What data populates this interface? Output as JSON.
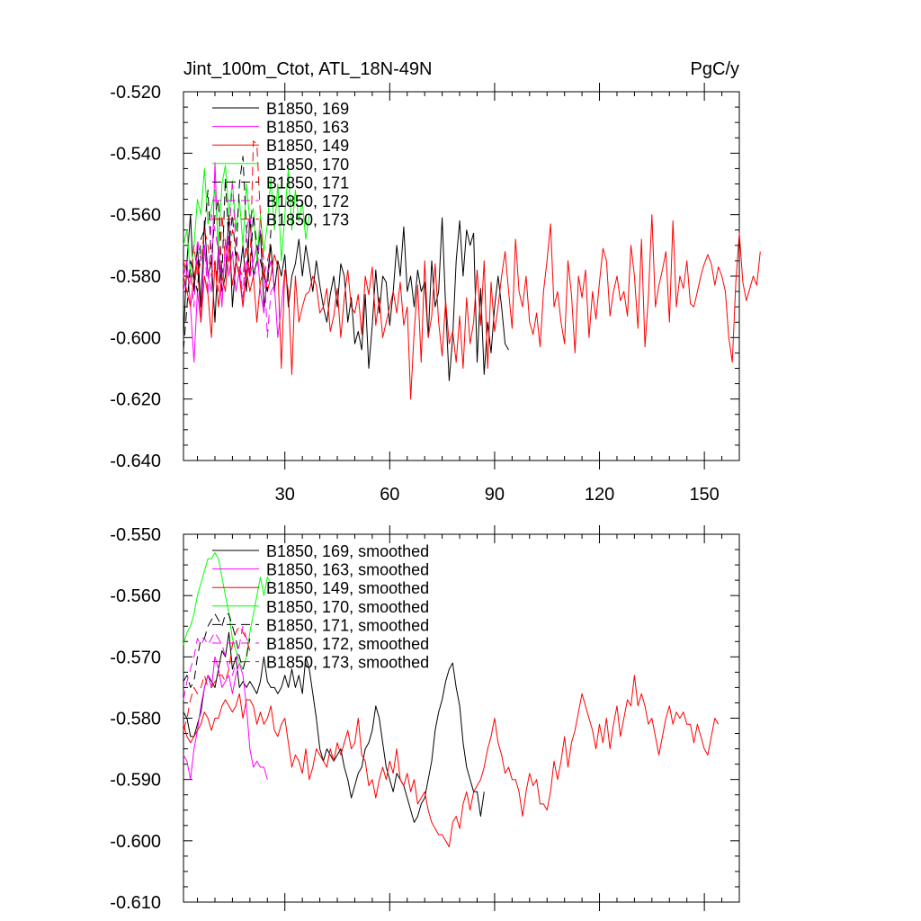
{
  "chart_data": [
    {
      "type": "line",
      "title": "Jint_100m_Ctot, ATL_18N-49N",
      "units_label": "PgC/y",
      "xlabel": "",
      "ylabel": "",
      "xlim": [
        1,
        160
      ],
      "ylim": [
        -0.64,
        -0.52
      ],
      "x_ticks": [
        30,
        60,
        90,
        120,
        150
      ],
      "x_tick_labels": [
        "30",
        "60",
        "90",
        "120",
        "150"
      ],
      "y_ticks": [
        -0.52,
        -0.54,
        -0.56,
        -0.58,
        -0.6,
        -0.62,
        -0.64
      ],
      "y_tick_labels": [
        "-0.520",
        "-0.540",
        "-0.560",
        "-0.580",
        "-0.600",
        "-0.620",
        "-0.640"
      ],
      "legend_position": "top-left",
      "series": [
        {
          "name": "B1850, 169",
          "color": "#000000",
          "dash": "solid",
          "x_start": 1,
          "values": [
            -0.6,
            -0.575,
            -0.56,
            -0.585,
            -0.57,
            -0.59,
            -0.562,
            -0.58,
            -0.575,
            -0.595,
            -0.57,
            -0.585,
            -0.58,
            -0.56,
            -0.59,
            -0.575,
            -0.58,
            -0.57,
            -0.585,
            -0.56,
            -0.58,
            -0.575,
            -0.565,
            -0.59,
            -0.58,
            -0.57,
            -0.585,
            -0.575,
            -0.58,
            -0.573,
            -0.59,
            -0.58,
            -0.576,
            -0.568,
            -0.58,
            -0.57,
            -0.577,
            -0.585,
            -0.575,
            -0.583,
            -0.59,
            -0.595,
            -0.586,
            -0.58,
            -0.59,
            -0.576,
            -0.58,
            -0.595,
            -0.587,
            -0.602,
            -0.598,
            -0.604,
            -0.586,
            -0.61,
            -0.596,
            -0.578,
            -0.592,
            -0.58,
            -0.582,
            -0.596,
            -0.585,
            -0.57,
            -0.58,
            -0.564,
            -0.585,
            -0.58,
            -0.59,
            -0.578,
            -0.585,
            -0.582,
            -0.6,
            -0.575,
            -0.59,
            -0.585,
            -0.561,
            -0.59,
            -0.614,
            -0.6,
            -0.575,
            -0.562,
            -0.58,
            -0.565,
            -0.57,
            -0.566,
            -0.608,
            -0.584,
            -0.612,
            -0.595,
            -0.605,
            -0.59,
            -0.58,
            -0.59,
            -0.602,
            -0.604
          ]
        },
        {
          "name": "B1850, 163",
          "color": "#ff00ff",
          "dash": "solid",
          "x_start": 1,
          "values": [
            -0.58,
            -0.575,
            -0.59,
            -0.608,
            -0.585,
            -0.595,
            -0.57,
            -0.58,
            -0.585,
            -0.543,
            -0.575,
            -0.59,
            -0.568,
            -0.58,
            -0.572,
            -0.585,
            -0.578,
            -0.59,
            -0.575,
            -0.58,
            -0.575,
            -0.57,
            -0.585,
            -0.592,
            -0.58,
            -0.575,
            -0.583,
            -0.6,
            -0.59,
            -0.578
          ]
        },
        {
          "name": "B1850, 149",
          "color": "#ff0000",
          "dash": "solid",
          "x_start": 1,
          "values": [
            -0.58,
            -0.585,
            -0.59,
            -0.58,
            -0.575,
            -0.595,
            -0.58,
            -0.586,
            -0.6,
            -0.575,
            -0.59,
            -0.58,
            -0.585,
            -0.57,
            -0.583,
            -0.575,
            -0.58,
            -0.59,
            -0.578,
            -0.585,
            -0.58,
            -0.595,
            -0.582,
            -0.578,
            -0.585,
            -0.58,
            -0.573,
            -0.577,
            -0.61,
            -0.578,
            -0.585,
            -0.612,
            -0.58,
            -0.595,
            -0.59,
            -0.586,
            -0.585,
            -0.58,
            -0.583,
            -0.592,
            -0.59,
            -0.584,
            -0.598,
            -0.593,
            -0.584,
            -0.6,
            -0.587,
            -0.578,
            -0.59,
            -0.592,
            -0.586,
            -0.599,
            -0.58,
            -0.586,
            -0.577,
            -0.596,
            -0.587,
            -0.6,
            -0.595,
            -0.59,
            -0.585,
            -0.592,
            -0.582,
            -0.596,
            -0.59,
            -0.62,
            -0.598,
            -0.583,
            -0.608,
            -0.575,
            -0.6,
            -0.593,
            -0.576,
            -0.595,
            -0.606,
            -0.588,
            -0.602,
            -0.598,
            -0.608,
            -0.593,
            -0.61,
            -0.587,
            -0.602,
            -0.595,
            -0.578,
            -0.596,
            -0.575,
            -0.61,
            -0.582,
            -0.598,
            -0.59,
            -0.58,
            -0.572,
            -0.585,
            -0.597,
            -0.568,
            -0.585,
            -0.59,
            -0.58,
            -0.595,
            -0.599,
            -0.592,
            -0.603,
            -0.585,
            -0.575,
            -0.563,
            -0.59,
            -0.585,
            -0.595,
            -0.602,
            -0.575,
            -0.586,
            -0.605,
            -0.58,
            -0.587,
            -0.578,
            -0.6,
            -0.585,
            -0.594,
            -0.582,
            -0.571,
            -0.575,
            -0.593,
            -0.585,
            -0.58,
            -0.588,
            -0.585,
            -0.593,
            -0.57,
            -0.58,
            -0.597,
            -0.568,
            -0.603,
            -0.587,
            -0.56,
            -0.59,
            -0.583,
            -0.578,
            -0.572,
            -0.595,
            -0.562,
            -0.59,
            -0.58,
            -0.584,
            -0.575,
            -0.589,
            -0.59,
            -0.585,
            -0.58,
            -0.576,
            -0.573,
            -0.576,
            -0.583,
            -0.577,
            -0.58,
            -0.585,
            -0.6,
            -0.608,
            -0.582,
            -0.566,
            -0.582,
            -0.588,
            -0.584,
            -0.58,
            -0.583,
            -0.572
          ]
        },
        {
          "name": "B1850, 170",
          "color": "#00ff00",
          "dash": "solid",
          "x_start": 1,
          "values": [
            -0.57,
            -0.565,
            -0.58,
            -0.57,
            -0.555,
            -0.56,
            -0.545,
            -0.563,
            -0.558,
            -0.552,
            -0.57,
            -0.55,
            -0.544,
            -0.56,
            -0.549,
            -0.565,
            -0.555,
            -0.57,
            -0.55,
            -0.562,
            -0.558,
            -0.575,
            -0.56,
            -0.572,
            -0.563,
            -0.548,
            -0.565,
            -0.55,
            -0.575,
            -0.56,
            -0.545,
            -0.565,
            -0.552,
            -0.562,
            -0.556,
            -0.568,
            -0.56
          ]
        },
        {
          "name": "B1850, 171",
          "color": "#000000",
          "dash": "long",
          "x_start": 1,
          "values": [
            -0.604,
            -0.59,
            -0.575,
            -0.58,
            -0.585,
            -0.568,
            -0.565,
            -0.552,
            -0.575,
            -0.56,
            -0.555,
            -0.58,
            -0.548,
            -0.57,
            -0.56,
            -0.575,
            -0.55,
            -0.541,
            -0.565,
            -0.58,
            -0.56,
            -0.57,
            -0.575,
            -0.58,
            -0.585,
            -0.565
          ]
        },
        {
          "name": "B1850, 172",
          "color": "#ff00ff",
          "dash": "long",
          "x_start": 1,
          "values": [
            -0.585,
            -0.578,
            -0.58,
            -0.59,
            -0.568,
            -0.575,
            -0.57,
            -0.586,
            -0.56,
            -0.565,
            -0.572,
            -0.58,
            -0.575,
            -0.567,
            -0.55,
            -0.57,
            -0.575,
            -0.587,
            -0.565,
            -0.56,
            -0.58,
            -0.578,
            -0.565,
            -0.575,
            -0.6,
            -0.585,
            -0.583
          ]
        },
        {
          "name": "B1850, 173",
          "color": "#ff0000",
          "dash": "long",
          "x_start": 1,
          "values": [
            -0.575,
            -0.58,
            -0.583,
            -0.57,
            -0.58,
            -0.575,
            -0.565,
            -0.57,
            -0.58,
            -0.575,
            -0.585,
            -0.56,
            -0.575,
            -0.575,
            -0.565,
            -0.57,
            -0.578,
            -0.58,
            -0.57,
            -0.58,
            -0.536,
            -0.537,
            -0.56,
            -0.58,
            -0.575,
            -0.57
          ]
        }
      ]
    },
    {
      "type": "line",
      "title": "",
      "xlabel": "",
      "ylabel": "",
      "xlim": [
        1,
        160
      ],
      "ylim": [
        -0.61,
        -0.55
      ],
      "x_ticks": [
        30,
        60,
        90,
        120,
        150
      ],
      "x_tick_labels": [],
      "y_ticks": [
        -0.55,
        -0.56,
        -0.57,
        -0.58,
        -0.59,
        -0.6,
        -0.61
      ],
      "y_tick_labels": [
        "-0.550",
        "-0.560",
        "-0.570",
        "-0.580",
        "-0.590",
        "-0.600",
        "-0.610"
      ],
      "legend_position": "top-left",
      "series": [
        {
          "name": "B1850, 169, smoothed",
          "color": "#000000",
          "dash": "solid",
          "x_start": 1,
          "values": [
            -0.579,
            -0.58,
            -0.583,
            -0.583,
            -0.581,
            -0.579,
            -0.575,
            -0.573,
            -0.574,
            -0.575,
            -0.572,
            -0.569,
            -0.57,
            -0.566,
            -0.572,
            -0.57,
            -0.575,
            -0.574,
            -0.575,
            -0.574,
            -0.575,
            -0.576,
            -0.574,
            -0.57,
            -0.574,
            -0.575,
            -0.575,
            -0.576,
            -0.575,
            -0.573,
            -0.575,
            -0.572,
            -0.575,
            -0.573,
            -0.576,
            -0.57,
            -0.572,
            -0.576,
            -0.58,
            -0.585,
            -0.587,
            -0.585,
            -0.586,
            -0.587,
            -0.586,
            -0.585,
            -0.588,
            -0.59,
            -0.593,
            -0.591,
            -0.589,
            -0.588,
            -0.585,
            -0.584,
            -0.582,
            -0.578,
            -0.58,
            -0.584,
            -0.588,
            -0.59,
            -0.592,
            -0.589,
            -0.59,
            -0.591,
            -0.593,
            -0.595,
            -0.597,
            -0.596,
            -0.594,
            -0.593,
            -0.59,
            -0.587,
            -0.582,
            -0.579,
            -0.577,
            -0.574,
            -0.572,
            -0.571,
            -0.575,
            -0.578,
            -0.584,
            -0.588,
            -0.59,
            -0.592,
            -0.592,
            -0.596,
            -0.592
          ]
        },
        {
          "name": "B1850, 163, smoothed",
          "color": "#ff00ff",
          "dash": "solid",
          "x_start": 1,
          "values": [
            -0.586,
            -0.587,
            -0.59,
            -0.585,
            -0.582,
            -0.578,
            -0.575,
            -0.573,
            -0.575,
            -0.57,
            -0.572,
            -0.575,
            -0.574,
            -0.573,
            -0.576,
            -0.573,
            -0.571,
            -0.573,
            -0.578,
            -0.585,
            -0.588,
            -0.587,
            -0.588,
            -0.588,
            -0.59
          ]
        },
        {
          "name": "B1850, 149, smoothed",
          "color": "#ff0000",
          "dash": "solid",
          "x_start": 1,
          "values": [
            -0.581,
            -0.583,
            -0.584,
            -0.583,
            -0.582,
            -0.581,
            -0.579,
            -0.58,
            -0.582,
            -0.58,
            -0.58,
            -0.578,
            -0.577,
            -0.578,
            -0.579,
            -0.578,
            -0.576,
            -0.58,
            -0.577,
            -0.577,
            -0.578,
            -0.581,
            -0.579,
            -0.581,
            -0.58,
            -0.578,
            -0.582,
            -0.583,
            -0.581,
            -0.58,
            -0.584,
            -0.588,
            -0.586,
            -0.587,
            -0.589,
            -0.585,
            -0.59,
            -0.588,
            -0.585,
            -0.586,
            -0.587,
            -0.588,
            -0.585,
            -0.587,
            -0.584,
            -0.586,
            -0.584,
            -0.582,
            -0.585,
            -0.584,
            -0.58,
            -0.586,
            -0.587,
            -0.591,
            -0.59,
            -0.593,
            -0.59,
            -0.588,
            -0.59,
            -0.587,
            -0.589,
            -0.585,
            -0.59,
            -0.591,
            -0.589,
            -0.592,
            -0.59,
            -0.594,
            -0.593,
            -0.592,
            -0.595,
            -0.597,
            -0.598,
            -0.599,
            -0.599,
            -0.6,
            -0.601,
            -0.597,
            -0.596,
            -0.598,
            -0.594,
            -0.592,
            -0.595,
            -0.592,
            -0.591,
            -0.59,
            -0.588,
            -0.585,
            -0.583,
            -0.58,
            -0.584,
            -0.586,
            -0.589,
            -0.588,
            -0.59,
            -0.59,
            -0.592,
            -0.596,
            -0.592,
            -0.589,
            -0.591,
            -0.59,
            -0.594,
            -0.594,
            -0.595,
            -0.592,
            -0.587,
            -0.59,
            -0.587,
            -0.583,
            -0.588,
            -0.584,
            -0.582,
            -0.579,
            -0.576,
            -0.578,
            -0.58,
            -0.582,
            -0.585,
            -0.581,
            -0.584,
            -0.58,
            -0.585,
            -0.581,
            -0.578,
            -0.583,
            -0.58,
            -0.577,
            -0.578,
            -0.573,
            -0.578,
            -0.576,
            -0.578,
            -0.581,
            -0.58,
            -0.583,
            -0.586,
            -0.583,
            -0.58,
            -0.578,
            -0.581,
            -0.579,
            -0.58,
            -0.579,
            -0.581,
            -0.581,
            -0.584,
            -0.581,
            -0.583,
            -0.585,
            -0.586,
            -0.583,
            -0.58,
            -0.581
          ]
        },
        {
          "name": "B1850, 170, smoothed",
          "color": "#00ff00",
          "dash": "solid",
          "x_start": 1,
          "values": [
            -0.568,
            -0.566,
            -0.565,
            -0.563,
            -0.56,
            -0.558,
            -0.556,
            -0.554,
            -0.554,
            -0.553,
            -0.554,
            -0.557,
            -0.56,
            -0.563,
            -0.567,
            -0.569,
            -0.571,
            -0.572,
            -0.57,
            -0.566,
            -0.563,
            -0.56,
            -0.557,
            -0.56,
            -0.557,
            -0.558
          ]
        },
        {
          "name": "B1850, 171, smoothed",
          "color": "#000000",
          "dash": "long",
          "x_start": 1,
          "values": [
            -0.574,
            -0.573,
            -0.575,
            -0.574,
            -0.57,
            -0.567,
            -0.567,
            -0.565,
            -0.564,
            -0.563,
            -0.564,
            -0.565,
            -0.563,
            -0.563,
            -0.565,
            -0.567,
            -0.57,
            -0.572,
            -0.57,
            -0.567
          ]
        },
        {
          "name": "B1850, 172, smoothed",
          "color": "#ff00ff",
          "dash": "long",
          "x_start": 1,
          "values": [
            -0.577,
            -0.574,
            -0.572,
            -0.57,
            -0.567,
            -0.568,
            -0.567,
            -0.568,
            -0.567,
            -0.566,
            -0.567,
            -0.568,
            -0.57,
            -0.572,
            -0.573,
            -0.571,
            -0.568,
            -0.565,
            -0.567,
            -0.568
          ]
        },
        {
          "name": "B1850, 173, smoothed",
          "color": "#ff0000",
          "dash": "long",
          "x_start": 1,
          "values": [
            -0.582,
            -0.58,
            -0.577,
            -0.575,
            -0.576,
            -0.575,
            -0.573,
            -0.575,
            -0.575,
            -0.574,
            -0.573,
            -0.573,
            -0.574,
            -0.572,
            -0.568,
            -0.566,
            -0.565,
            -0.566,
            -0.567,
            -0.569
          ]
        }
      ]
    }
  ]
}
